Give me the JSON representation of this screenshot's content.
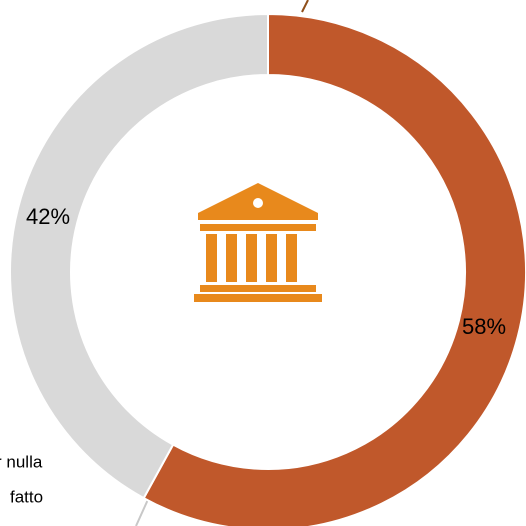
{
  "chart_data": {
    "type": "donut",
    "values": [
      58,
      42
    ],
    "value_labels": [
      "58%",
      "42%"
    ],
    "colors": [
      "#c0582b",
      "#d9d9d9"
    ],
    "annotations": [
      "r nulla",
      "fatto"
    ]
  }
}
